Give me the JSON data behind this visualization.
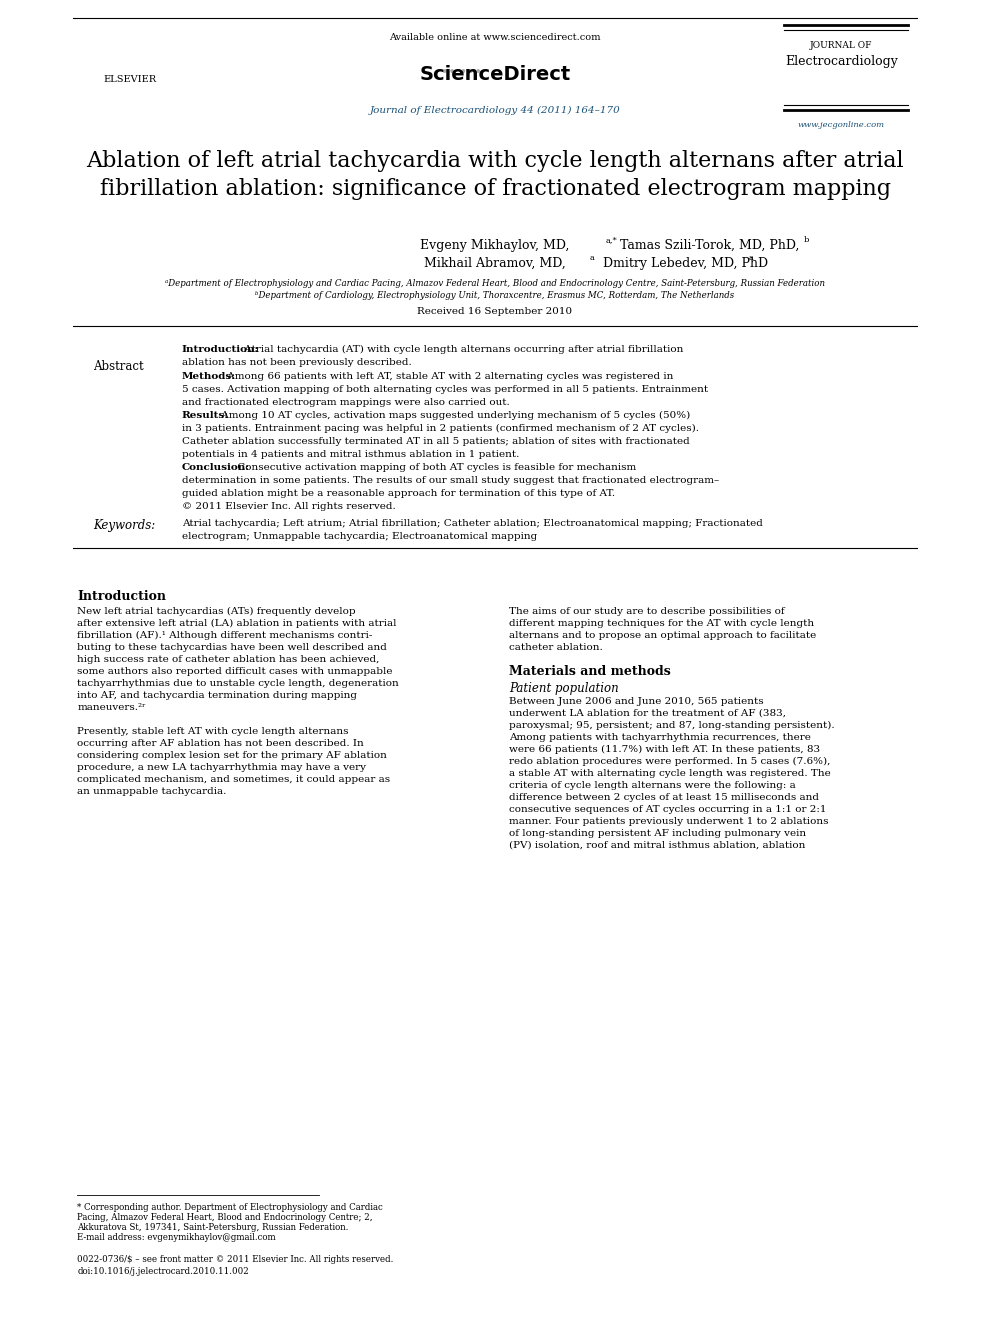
{
  "bg_color": "#ffffff",
  "text_color": "#000000",
  "blue_color": "#1a5276",
  "header": {
    "available_online": "Available online at www.sciencedirect.com",
    "journal_ref": "Journal of Electrocardiology 44 (2011) 164–170",
    "journal_name_line1": "JOURNAL OF",
    "journal_name_line2": "Electrocardiology",
    "website": "www.jecgonline.com",
    "elsevier": "ELSEVIER"
  },
  "title": "Ablation of left atrial tachycardia with cycle length alternans after atrial\nfibrillation ablation: significance of fractionated electrogram mapping",
  "authors_line1": "Evgeny Mikhaylov, MD,",
  "authors_line1_sup1": "a,*",
  "authors_line1_b": " Tamas Szili-Torok, MD, PhD,",
  "authors_line1_sup2": "b",
  "authors_line2": "Mikhail Abramov, MD,",
  "authors_line2_sup1": "a",
  "authors_line2_b": " Dmitry Lebedev, MD, PhD",
  "authors_line2_sup2": "a",
  "affil_a": "ᵃDepartment of Electrophysiology and Cardiac Pacing, Almazov Federal Heart, Blood and Endocrinology Centre, Saint-Petersburg, Russian Federation",
  "affil_b": "ᵇDepartment of Cardiology, Electrophysiology Unit, Thoraxcentre, Erasmus MC, Rotterdam, The Netherlands",
  "received": "Received 16 September 2010",
  "abstract_label": "Abstract",
  "abstract_intro_bold": "Introduction:",
  "abstract_intro_text": " Atrial tachycardia (AT) with cycle length alternans occurring after atrial fibrillation\nablation has not been previously described.",
  "abstract_methods_bold": "Methods:",
  "abstract_methods_text": " Among 66 patients with left AT, stable AT with 2 alternating cycles was registered in\n5 cases. Activation mapping of both alternating cycles was performed in all 5 patients. Entrainment\nand fractionated electrogram mappings were also carried out.",
  "abstract_results_bold": "Results:",
  "abstract_results_text": " Among 10 AT cycles, activation maps suggested underlying mechanism of 5 cycles (50%)\nin 3 patients. Entrainment pacing was helpful in 2 patients (confirmed mechanism of 2 AT cycles).\nCatheter ablation successfully terminated AT in all 5 patients; ablation of sites with fractionated\npotentials in 4 patients and mitral isthmus ablation in 1 patient.",
  "abstract_conclusion_bold": "Conclusion:",
  "abstract_conclusion_text": " Consecutive activation mapping of both AT cycles is feasible for mechanism\ndetermination in some patients. The results of our small study suggest that fractionated electrogram–\nguided ablation might be a reasonable approach for termination of this type of AT.\n© 2011 Elsevier Inc. All rights reserved.",
  "keywords_label": "Keywords:",
  "keywords_text": "Atrial tachycardia; Left atrium; Atrial fibrillation; Catheter ablation; Electroanatomical mapping; Fractionated\nelectrogram; Unmappable tachycardia; Electroanatomical mapping",
  "intro_heading": "Introduction",
  "intro_col1": "New left atrial tachycardias (ATs) frequently develop\nafter extensive left atrial (LA) ablation in patients with atrial\nfibrillation (AF).¹ Although different mechanisms contri-\nbuting to these tachycardias have been well described and\nhigh success rate of catheter ablation has been achieved,\nsome authors also reported difficult cases with unmappable\ntachyarrhythmias due to unstable cycle length, degeneration\ninto AF, and tachycardia termination during mapping\nmaneuvers.²ʳ\n\nPresently, stable left AT with cycle length alternans\noccurring after AF ablation has not been described. In\nconsidering complex lesion set for the primary AF ablation\nprocedure, a new LA tachyarrhythmia may have a very\ncomplicated mechanism, and sometimes, it could appear as\nan unmappable tachycardia.",
  "intro_col2": "The aims of our study are to describe possibilities of\ndifferent mapping techniques for the AT with cycle length\nalternans and to propose an optimal approach to facilitate\ncatheter ablation.",
  "methods_heading": "Materials and methods",
  "patient_heading": "Patient population",
  "patient_col2": "Between June 2006 and June 2010, 565 patients\nunderwent LA ablation for the treatment of AF (383,\nparoxysmal; 95, persistent; and 87, long-standing persistent).\nAmong patients with tachyarrhythmia recurrences, there\nwere 66 patients (11.7%) with left AT. In these patients, 83\nredo ablation procedures were performed. In 5 cases (7.6%),\na stable AT with alternating cycle length was registered. The\ncriteria of cycle length alternans were the following: a\ndifference between 2 cycles of at least 15 milliseconds and\nconsecutive sequences of AT cycles occurring in a 1:1 or 2:1\nmanner. Four patients previously underwent 1 to 2 ablations\nof long-standing persistent AF including pulmonary vein\n(PV) isolation, roof and mitral isthmus ablation, ablation",
  "footnote_star": "* Corresponding author. Department of Electrophysiology and Cardiac\nPacing, Almazov Federal Heart, Blood and Endocrinology Centre; 2,\nAkkuratova St, 197341, Saint-Petersburg, Russian Federation.",
  "footnote_email": "E-mail address: evgenymikhaylov@gmail.com",
  "footnote_issn": "0022-0736/$ – see front matter © 2011 Elsevier Inc. All rights reserved.",
  "footnote_doi": "doi:10.1016/j.jelectrocard.2010.11.002"
}
